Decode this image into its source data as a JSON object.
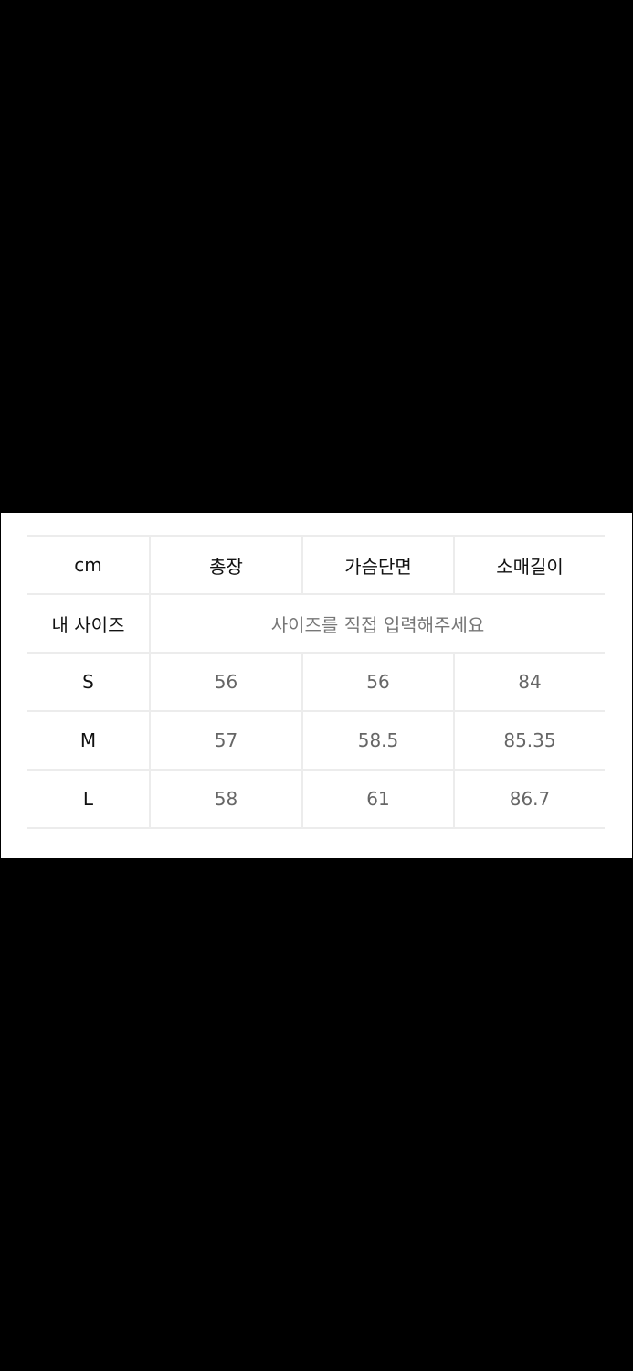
{
  "size_table": {
    "header": [
      "cm",
      "총장",
      "가슴단면",
      "소매길이"
    ],
    "my_size": {
      "label": "내 사이즈",
      "placeholder": "사이즈를 직접 입력해주세요"
    },
    "rows": [
      {
        "size": "S",
        "values": [
          "56",
          "56",
          "84"
        ]
      },
      {
        "size": "M",
        "values": [
          "57",
          "58.5",
          "85.35"
        ]
      },
      {
        "size": "L",
        "values": [
          "58",
          "61",
          "86.7"
        ]
      }
    ]
  }
}
